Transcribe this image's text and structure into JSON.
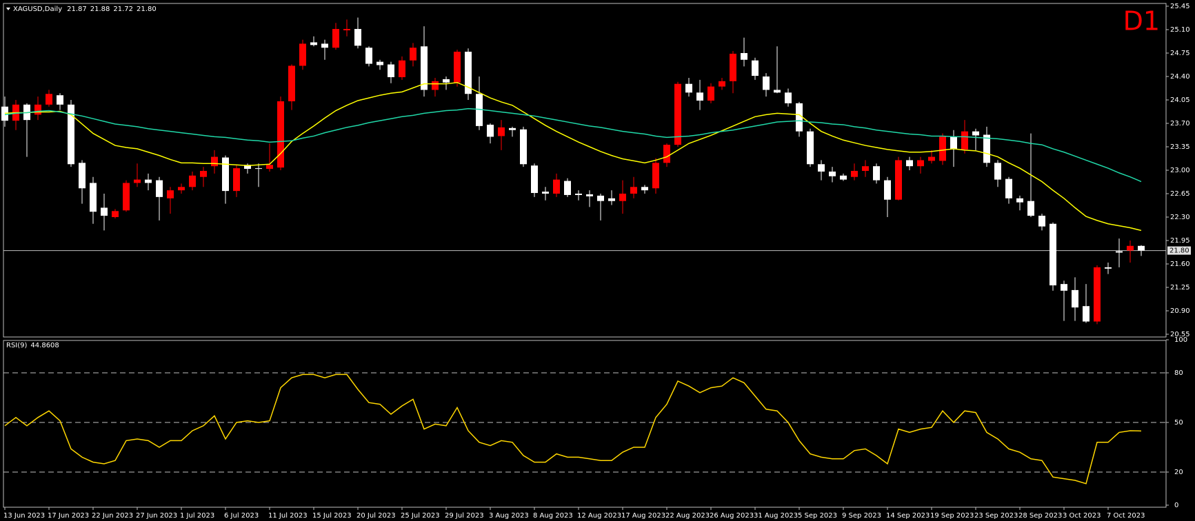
{
  "chart_data": [
    {
      "type": "candlestick",
      "title": "XAGUSD,Daily",
      "ohlc_labels": [
        "21.87",
        "21.88",
        "21.72",
        "21.80"
      ],
      "timeframe": "D1",
      "categories": [
        "13 Jun 2023",
        null,
        null,
        null,
        "17 Jun 2023",
        null,
        null,
        null,
        "22 Jun 2023",
        null,
        null,
        null,
        "27 Jun 2023",
        null,
        null,
        null,
        "1 Jul 2023",
        null,
        null,
        null,
        "6 Jul 2023",
        null,
        null,
        null,
        "11 Jul 2023",
        null,
        null,
        null,
        "15 Jul 2023",
        null,
        null,
        null,
        "20 Jul 2023",
        null,
        null,
        null,
        "25 Jul 2023",
        null,
        null,
        null,
        "29 Jul 2023",
        null,
        null,
        null,
        "3 Aug 2023",
        null,
        null,
        null,
        "8 Aug 2023",
        null,
        null,
        null,
        "12 Aug 2023",
        null,
        null,
        null,
        "17 Aug 2023",
        null,
        null,
        null,
        "22 Aug 2023",
        null,
        null,
        null,
        "26 Aug 2023",
        null,
        null,
        null,
        "31 Aug 2023",
        null,
        null,
        null,
        "5 Sep 2023",
        null,
        null,
        null,
        "9 Sep 2023",
        null,
        null,
        null,
        "14 Sep 2023",
        null,
        null,
        null,
        "19 Sep 2023",
        null,
        null,
        null,
        "23 Sep 2023",
        null,
        null,
        null,
        "28 Sep 2023",
        null,
        null,
        null,
        "3 Oct 2023",
        null,
        null,
        null,
        "7 Oct 2023",
        null,
        null,
        null
      ],
      "open": [
        23.95,
        23.74,
        23.98,
        23.83,
        23.98,
        24.12,
        23.98,
        23.11,
        22.81,
        22.44,
        22.3,
        22.4,
        22.81,
        22.86,
        22.85,
        22.58,
        22.7,
        22.75,
        22.9,
        23.06,
        23.19,
        22.69,
        23.08,
        23.03,
        23.02,
        23.04,
        24.03,
        24.56,
        24.91,
        24.89,
        24.83,
        25.09,
        25.11,
        24.83,
        24.62,
        24.58,
        24.39,
        24.64,
        24.85,
        24.2,
        24.36,
        24.31,
        24.77,
        24.14,
        23.68,
        23.51,
        23.63,
        23.61,
        23.07,
        22.68,
        22.65,
        22.84,
        22.65,
        22.64,
        22.62,
        22.58,
        22.54,
        22.65,
        22.75,
        22.73,
        23.11,
        23.38,
        24.29,
        24.16,
        24.04,
        24.25,
        24.33,
        24.75,
        24.64,
        24.4,
        24.2,
        24.16,
        24.0,
        23.58,
        23.09,
        22.98,
        22.92,
        22.9,
        22.99,
        23.06,
        22.85,
        22.56,
        23.15,
        23.06,
        23.14,
        23.14,
        23.5,
        23.31,
        23.58,
        23.53,
        23.11,
        22.87,
        22.58,
        22.54,
        22.32,
        22.2,
        21.3,
        21.21,
        20.97,
        20.74,
        21.55,
        21.79,
        21.8,
        21.87
      ],
      "high": [
        24.1,
        24.05,
        24.0,
        24.1,
        24.2,
        24.15,
        24.05,
        23.15,
        22.9,
        22.65,
        22.42,
        22.85,
        23.1,
        22.95,
        22.9,
        22.75,
        22.8,
        22.98,
        23.05,
        23.3,
        23.22,
        23.08,
        23.1,
        23.1,
        23.4,
        24.1,
        24.58,
        24.95,
        25.0,
        24.95,
        25.2,
        25.25,
        25.28,
        24.85,
        24.65,
        24.62,
        24.7,
        24.9,
        25.15,
        24.38,
        24.4,
        24.8,
        24.82,
        24.4,
        23.7,
        23.75,
        23.65,
        23.65,
        23.1,
        22.75,
        22.95,
        22.88,
        22.7,
        22.7,
        22.65,
        22.7,
        22.85,
        22.9,
        22.78,
        23.18,
        23.4,
        24.32,
        24.38,
        24.35,
        24.3,
        24.38,
        24.78,
        24.98,
        24.68,
        24.45,
        24.85,
        24.22,
        24.02,
        23.62,
        23.15,
        23.05,
        22.95,
        23.1,
        23.15,
        23.1,
        22.9,
        23.2,
        23.2,
        23.2,
        23.3,
        23.55,
        23.6,
        23.75,
        23.62,
        23.65,
        23.15,
        22.9,
        22.62,
        23.55,
        22.35,
        22.22,
        21.35,
        21.4,
        21.3,
        21.58,
        21.62,
        21.98,
        21.95,
        21.88
      ],
      "low": [
        23.65,
        23.6,
        23.2,
        23.75,
        23.95,
        23.9,
        23.05,
        22.5,
        22.2,
        22.1,
        22.28,
        22.38,
        22.75,
        22.7,
        22.25,
        22.35,
        22.65,
        22.7,
        22.75,
        22.95,
        22.5,
        22.6,
        22.95,
        22.75,
        22.98,
        23.0,
        23.9,
        24.5,
        24.85,
        24.65,
        24.8,
        25.0,
        24.82,
        24.55,
        24.5,
        24.3,
        24.35,
        24.55,
        24.1,
        24.1,
        24.2,
        24.25,
        24.05,
        23.6,
        23.4,
        23.3,
        23.5,
        23.05,
        22.6,
        22.55,
        22.6,
        22.6,
        22.55,
        22.45,
        22.25,
        22.48,
        22.35,
        22.58,
        22.65,
        22.65,
        23.05,
        23.35,
        24.1,
        23.9,
        24.0,
        24.2,
        24.15,
        24.55,
        24.35,
        24.1,
        24.15,
        23.95,
        23.5,
        23.05,
        22.85,
        22.82,
        22.84,
        22.85,
        22.9,
        22.8,
        22.3,
        22.55,
        23.0,
        22.95,
        23.1,
        23.08,
        23.05,
        23.25,
        23.3,
        23.05,
        22.75,
        22.5,
        22.4,
        22.3,
        22.1,
        21.2,
        20.75,
        20.75,
        20.72,
        20.7,
        21.45,
        21.55,
        21.62,
        21.72
      ],
      "close": [
        23.74,
        23.98,
        23.75,
        23.98,
        24.14,
        23.98,
        23.09,
        22.73,
        22.38,
        22.32,
        22.39,
        22.81,
        22.86,
        22.81,
        22.6,
        22.7,
        22.75,
        22.92,
        22.99,
        23.2,
        22.69,
        23.03,
        23.02,
        23.02,
        23.08,
        24.03,
        24.56,
        24.89,
        24.87,
        24.83,
        25.11,
        25.11,
        24.86,
        24.59,
        24.57,
        24.39,
        24.64,
        24.83,
        24.2,
        24.33,
        24.31,
        24.77,
        24.14,
        23.66,
        23.5,
        23.64,
        23.6,
        23.09,
        22.66,
        22.65,
        22.86,
        22.63,
        22.63,
        22.61,
        22.54,
        22.54,
        22.65,
        22.75,
        22.7,
        23.11,
        23.38,
        24.29,
        24.16,
        24.04,
        24.25,
        24.33,
        24.74,
        24.65,
        24.41,
        24.2,
        24.16,
        24.0,
        23.58,
        23.09,
        22.98,
        22.91,
        22.86,
        22.99,
        23.06,
        22.85,
        22.56,
        23.15,
        23.06,
        23.15,
        23.2,
        23.5,
        23.31,
        23.58,
        23.52,
        23.11,
        22.86,
        22.58,
        22.52,
        22.32,
        22.16,
        21.28,
        21.2,
        20.95,
        20.74,
        21.55,
        21.53,
        21.77,
        21.87,
        21.8
      ],
      "up_color": "#ff0000",
      "down_color": "#ffffff",
      "overlays": [
        {
          "color": "#ffff00",
          "values": [
            23.85,
            23.86,
            23.86,
            23.87,
            23.87,
            23.88,
            23.83,
            23.69,
            23.55,
            23.46,
            23.37,
            23.34,
            23.32,
            23.27,
            23.22,
            23.16,
            23.11,
            23.11,
            23.1,
            23.1,
            23.09,
            23.08,
            23.07,
            23.08,
            23.09,
            23.25,
            23.43,
            23.55,
            23.66,
            23.78,
            23.89,
            23.97,
            24.04,
            24.08,
            24.12,
            24.15,
            24.17,
            24.23,
            24.29,
            24.29,
            24.29,
            24.31,
            24.24,
            24.16,
            24.08,
            24.02,
            23.97,
            23.87,
            23.77,
            23.67,
            23.58,
            23.5,
            23.42,
            23.35,
            23.28,
            23.22,
            23.17,
            23.14,
            23.11,
            23.15,
            23.2,
            23.3,
            23.4,
            23.46,
            23.52,
            23.59,
            23.66,
            23.73,
            23.8,
            23.83,
            23.85,
            23.84,
            23.83,
            23.7,
            23.58,
            23.51,
            23.45,
            23.41,
            23.37,
            23.34,
            23.31,
            23.29,
            23.27,
            23.27,
            23.28,
            23.3,
            23.32,
            23.3,
            23.29,
            23.25,
            23.2,
            23.11,
            23.03,
            22.93,
            22.83,
            22.7,
            22.58,
            22.44,
            22.31,
            22.25,
            22.2,
            22.17,
            22.14,
            22.1
          ]
        },
        {
          "color": "#20d8a8",
          "values": [
            23.83,
            23.85,
            23.86,
            23.88,
            23.89,
            23.87,
            23.84,
            23.81,
            23.77,
            23.73,
            23.69,
            23.67,
            23.65,
            23.62,
            23.6,
            23.58,
            23.56,
            23.54,
            23.52,
            23.5,
            23.49,
            23.47,
            23.45,
            23.44,
            23.42,
            23.43,
            23.44,
            23.48,
            23.51,
            23.56,
            23.6,
            23.64,
            23.67,
            23.71,
            23.74,
            23.77,
            23.8,
            23.82,
            23.85,
            23.87,
            23.89,
            23.9,
            23.92,
            23.91,
            23.89,
            23.87,
            23.85,
            23.83,
            23.81,
            23.78,
            23.75,
            23.72,
            23.69,
            23.66,
            23.64,
            23.61,
            23.58,
            23.56,
            23.54,
            23.51,
            23.49,
            23.5,
            23.51,
            23.53,
            23.56,
            23.58,
            23.6,
            23.63,
            23.66,
            23.69,
            23.72,
            23.73,
            23.74,
            23.72,
            23.71,
            23.69,
            23.68,
            23.65,
            23.63,
            23.6,
            23.58,
            23.56,
            23.54,
            23.53,
            23.51,
            23.51,
            23.5,
            23.5,
            23.49,
            23.48,
            23.47,
            23.45,
            23.43,
            23.4,
            23.38,
            23.32,
            23.27,
            23.21,
            23.15,
            23.09,
            23.03,
            22.96,
            22.9,
            22.83
          ]
        }
      ],
      "bid": {
        "value": 21.8,
        "label": "21.80"
      },
      "bid_color": "#c0c0c0",
      "ylim": [
        20.55,
        25.45
      ],
      "yticks": [
        20.55,
        {
          "value": 20.9,
          "label": "20.90"
        },
        21.25,
        {
          "value": 21.6,
          "label": "21.60"
        },
        21.95,
        {
          "value": 22.3,
          "label": "22.30"
        },
        22.65,
        {
          "value": 23.0,
          "label": "23.00"
        },
        23.35,
        {
          "value": 23.7,
          "label": "23.70"
        },
        24.05,
        {
          "value": 24.4,
          "label": "24.40"
        },
        {
          "value": 24.75,
          "label": "24.75"
        },
        {
          "value": 25.1,
          "label": "25.10"
        },
        25.45
      ]
    },
    {
      "type": "line",
      "title": "RSI(9)",
      "color": "#ffd700",
      "values": [
        48,
        53,
        48,
        53,
        57,
        51,
        34,
        29,
        26,
        25,
        27,
        39,
        40,
        39,
        35,
        39,
        39,
        45,
        48,
        54,
        40,
        50,
        51,
        50,
        51,
        71,
        77,
        79,
        79,
        77,
        79,
        79,
        70,
        62,
        61,
        55,
        60,
        64,
        46,
        49,
        48,
        59,
        45,
        38,
        36,
        39,
        38,
        30,
        26,
        26,
        31,
        29,
        29,
        28,
        27,
        27,
        32,
        35,
        35,
        53,
        61,
        75,
        72,
        68,
        71,
        72,
        77,
        74,
        66,
        58,
        57,
        50,
        39,
        31,
        29,
        28,
        28,
        33,
        34,
        30,
        25,
        46,
        44,
        46,
        47,
        57,
        50,
        57,
        56,
        44,
        40,
        34,
        32,
        28,
        27,
        17,
        16,
        15,
        13,
        38,
        38,
        44,
        45,
        44.8608
      ],
      "ylim": [
        0,
        100
      ],
      "yticks": [
        0,
        20,
        50,
        80,
        100
      ],
      "levels": [
        20,
        50,
        80
      ],
      "level_color": "#c0c0c0"
    }
  ]
}
